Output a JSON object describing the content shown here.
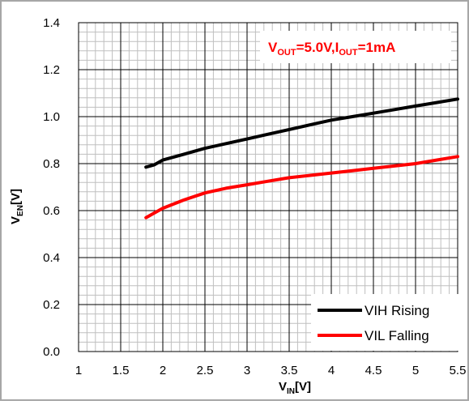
{
  "chart_data": {
    "type": "line",
    "title": "",
    "annotation": {
      "v": "V",
      "out_sub": "OUT",
      "eq_v": "=5.0V,",
      "i": "I",
      "iout_sub": "OUT",
      "eq_i": "=1mA"
    },
    "xlabel": {
      "main": "V",
      "sub": "IN",
      "unit": "[V]"
    },
    "ylabel": {
      "main": "V",
      "sub": "EN",
      "unit": "[V]"
    },
    "xlim": [
      1,
      5.5
    ],
    "ylim": [
      0,
      1.4
    ],
    "xticks": [
      "1",
      "1.5",
      "2",
      "2.5",
      "3",
      "3.5",
      "4",
      "4.5",
      "5",
      "5.5"
    ],
    "yticks": [
      "0.0",
      "0.2",
      "0.4",
      "0.6",
      "0.8",
      "1.0",
      "1.2",
      "1.4"
    ],
    "grid": true,
    "legend_position": "bottom-right",
    "series": [
      {
        "name": "VIH Rising",
        "color": "#000000",
        "x": [
          1.8,
          1.9,
          2.0,
          2.25,
          2.5,
          2.75,
          3.0,
          3.25,
          3.5,
          3.75,
          4.0,
          4.25,
          4.5,
          4.75,
          5.0,
          5.25,
          5.5
        ],
        "y": [
          0.785,
          0.795,
          0.815,
          0.84,
          0.865,
          0.885,
          0.905,
          0.925,
          0.945,
          0.965,
          0.985,
          1.0,
          1.015,
          1.03,
          1.045,
          1.06,
          1.075
        ]
      },
      {
        "name": "VIL Falling",
        "color": "#ff0000",
        "x": [
          1.8,
          1.9,
          2.0,
          2.25,
          2.5,
          2.75,
          3.0,
          3.25,
          3.5,
          3.75,
          4.0,
          4.25,
          4.5,
          4.75,
          5.0,
          5.25,
          5.5
        ],
        "y": [
          0.57,
          0.59,
          0.61,
          0.645,
          0.675,
          0.695,
          0.71,
          0.725,
          0.74,
          0.75,
          0.76,
          0.77,
          0.78,
          0.79,
          0.8,
          0.815,
          0.83
        ]
      }
    ]
  }
}
